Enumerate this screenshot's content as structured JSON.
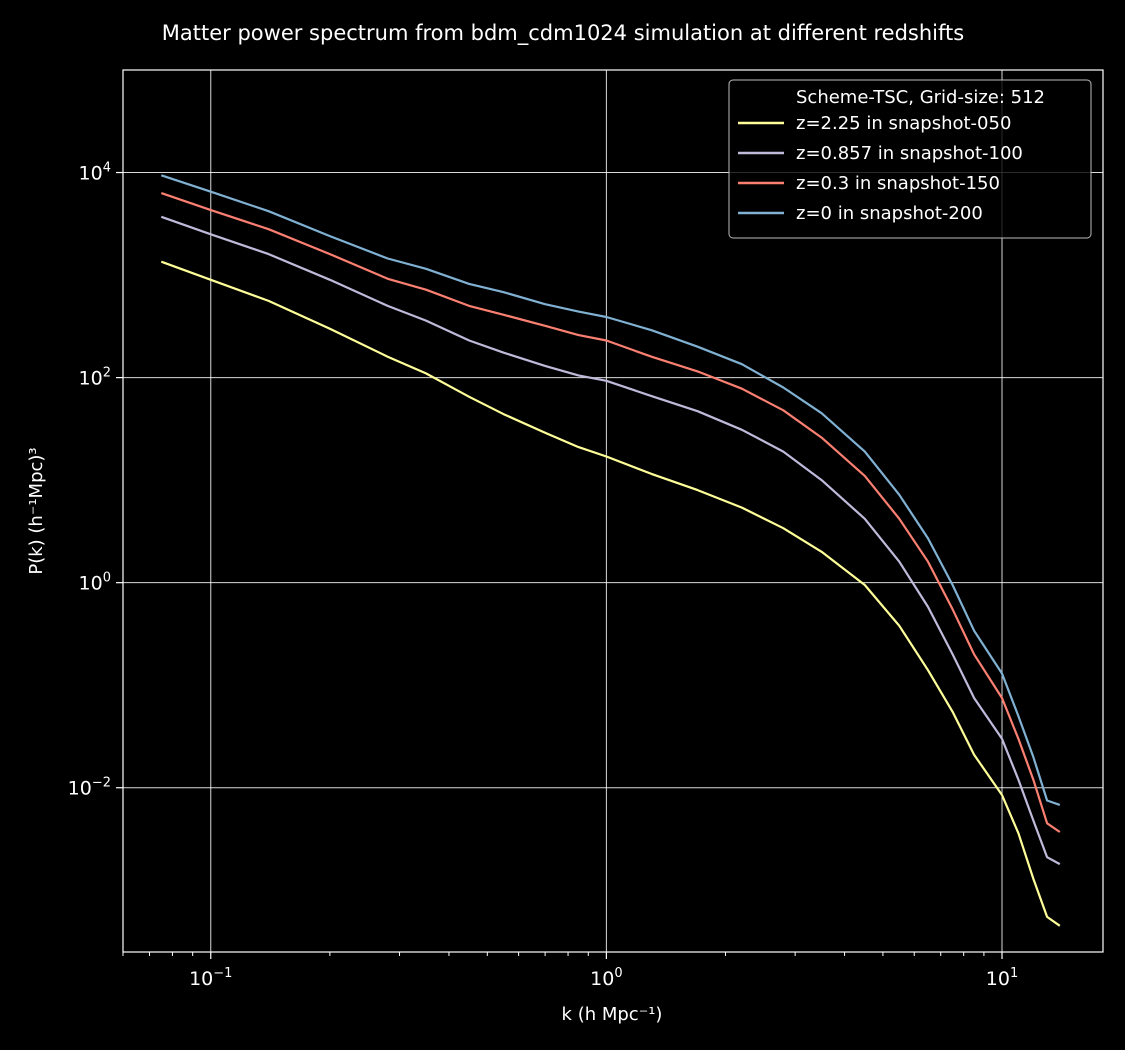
{
  "chart_data": {
    "type": "line",
    "title": "Matter power spectrum from bdm_cdm1024 simulation at different redshifts",
    "xlabel": "k  (h Mpc⁻¹)",
    "ylabel": "P(k)  (h⁻¹Mpc)³",
    "xscale": "log",
    "yscale": "log",
    "xlim": [
      0.06,
      18
    ],
    "ylim": [
      0.00025,
      100000
    ],
    "grid": true,
    "x_ticks": [
      {
        "value": 0.1,
        "label": "10",
        "exp": "−1"
      },
      {
        "value": 1,
        "label": "10",
        "exp": "0"
      },
      {
        "value": 10,
        "label": "10",
        "exp": "1"
      }
    ],
    "y_ticks": [
      {
        "value": 0.01,
        "label": "10",
        "exp": "−2"
      },
      {
        "value": 1,
        "label": "10",
        "exp": "0"
      },
      {
        "value": 100,
        "label": "10",
        "exp": "2"
      },
      {
        "value": 10000,
        "label": "10",
        "exp": "4"
      }
    ],
    "legend": {
      "position": "top-right",
      "header": "Scheme-TSC, Grid-size: 512"
    },
    "x": [
      0.075,
      0.1,
      0.14,
      0.2,
      0.28,
      0.35,
      0.45,
      0.55,
      0.7,
      0.85,
      1.0,
      1.3,
      1.7,
      2.2,
      2.8,
      3.5,
      4.5,
      5.5,
      6.5,
      7.5,
      8.5,
      10,
      11,
      12,
      13,
      14
    ],
    "series": [
      {
        "name": "z=2.25 in snapshot-050",
        "color": "#ffff99",
        "values": [
          1350.0,
          900.0,
          560.0,
          300.0,
          160.0,
          110.0,
          65.0,
          44.0,
          29.0,
          21.0,
          17.0,
          11.5,
          8.0,
          5.4,
          3.4,
          2.0,
          0.95,
          0.38,
          0.14,
          0.055,
          0.021,
          0.0085,
          0.0036,
          0.0013,
          0.00055,
          0.00045
        ]
      },
      {
        "name": "z=0.857 in snapshot-100",
        "color": "#bebada",
        "values": [
          3700.0,
          2500.0,
          1600.0,
          900.0,
          500.0,
          360.0,
          230.0,
          175.0,
          130.0,
          105.0,
          93.0,
          66.0,
          47.0,
          31.0,
          19.0,
          10.0,
          4.2,
          1.6,
          0.58,
          0.2,
          0.075,
          0.03,
          0.012,
          0.0048,
          0.0021,
          0.0018
        ]
      },
      {
        "name": "z=0.3 in snapshot-150",
        "color": "#fb8072",
        "values": [
          6300.0,
          4300.0,
          2800.0,
          1600.0,
          920.0,
          720.0,
          500.0,
          410.0,
          320.0,
          260.0,
          230.0,
          160.0,
          115.0,
          78.0,
          48.0,
          26.0,
          11.0,
          4.2,
          1.6,
          0.55,
          0.2,
          0.075,
          0.03,
          0.012,
          0.0045,
          0.0037
        ]
      },
      {
        "name": "z=0 in snapshot-200",
        "color": "#80b1d3",
        "values": [
          9400.0,
          6500.0,
          4200.0,
          2400.0,
          1450.0,
          1150.0,
          820.0,
          680.0,
          520.0,
          440.0,
          390.0,
          290.0,
          200.0,
          135.0,
          80.0,
          45.0,
          19.0,
          7.2,
          2.7,
          0.95,
          0.34,
          0.13,
          0.05,
          0.02,
          0.0075,
          0.0068
        ]
      }
    ]
  }
}
